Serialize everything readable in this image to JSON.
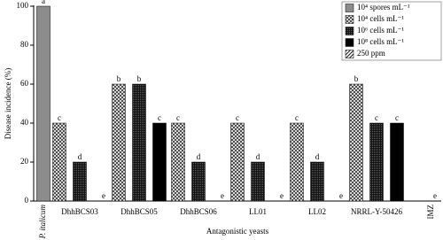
{
  "chart_data": {
    "type": "bar",
    "y_label": "Disease incidence (%)",
    "x_label": "Antagonistic yeasts",
    "categories": [
      "P. italicum",
      "DhhBCS03",
      "DhhBCS05",
      "DhhBCS06",
      "LL01",
      "LL02",
      "NRRL-Y-50426",
      "IMZ"
    ],
    "series": [
      {
        "name": "10⁴ spores mL⁻¹",
        "color": "#8c8c8c",
        "pattern": "solid",
        "values": [
          100,
          null,
          null,
          null,
          null,
          null,
          null,
          null
        ],
        "letters": [
          "a",
          null,
          null,
          null,
          null,
          null,
          null,
          null
        ]
      },
      {
        "name": "10⁴ cells mL⁻¹",
        "color": "#444444",
        "pattern": "checker",
        "values": [
          null,
          40,
          60,
          40,
          40,
          40,
          60,
          null
        ],
        "letters": [
          null,
          "c",
          "b",
          "c",
          "c",
          "c",
          "b",
          null
        ]
      },
      {
        "name": "10⁶ cells mL⁻¹",
        "color": "#1a1a1a",
        "pattern": "dots",
        "values": [
          null,
          20,
          60,
          20,
          20,
          20,
          40,
          null
        ],
        "letters": [
          null,
          "d",
          "b",
          "d",
          "d",
          "d",
          "c",
          null
        ]
      },
      {
        "name": "10⁸ cells mL⁻¹",
        "color": "#000000",
        "pattern": "solid",
        "values": [
          null,
          0,
          40,
          0,
          0,
          0,
          40,
          null
        ],
        "letters": [
          null,
          "e",
          "c",
          "e",
          "e",
          "e",
          "c",
          null
        ]
      },
      {
        "name": "250 ppm",
        "color": "#333333",
        "pattern": "hatch",
        "values": [
          null,
          null,
          null,
          null,
          null,
          null,
          null,
          0
        ],
        "letters": [
          null,
          null,
          null,
          null,
          null,
          null,
          null,
          "e"
        ]
      }
    ],
    "ylim": [
      0,
      100
    ],
    "yticks": [
      0,
      20,
      40,
      60,
      80,
      100
    ],
    "grid": false,
    "legend": "upper right"
  }
}
